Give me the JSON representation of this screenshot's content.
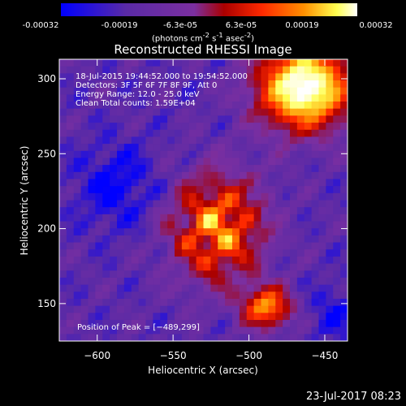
{
  "colorbar": {
    "ticks": [
      "-0.00032",
      "-0.00019",
      "-6.3e-05",
      "6.3e-05",
      "0.00019",
      "0.00032"
    ],
    "units_main": "(photons cm",
    "units_exp1": "-2",
    "units_mid": " s",
    "units_exp2": "-1",
    "units_end": " asec",
    "units_exp3": "-2",
    "units_close": ")"
  },
  "chart_data": {
    "type": "heatmap",
    "title": "Reconstructed RHESSI Image",
    "xlabel": "Heliocentric X (arcsec)",
    "ylabel": "Heliocentric Y (arcsec)",
    "xlim": [
      -625,
      -435
    ],
    "ylim": [
      125,
      313
    ],
    "xticks": [
      -600,
      -550,
      -500,
      -450
    ],
    "yticks": [
      150,
      200,
      250,
      300
    ],
    "xtick_labels": [
      "−600",
      "−550",
      "−500",
      "−450"
    ],
    "ytick_labels": [
      "150",
      "200",
      "250",
      "300"
    ],
    "colormap": [
      "#0000ff",
      "#5a2aa6",
      "#7b2fa0",
      "#aa0000",
      "#ff2a00",
      "#ff9000",
      "#ffff50",
      "#ffffff"
    ],
    "zrange": [
      -0.00032,
      0.00032
    ],
    "annotations": [
      "18-Jul-2015 19:44:52.000 to 19:54:52.000",
      "Detectors: 3F 5F 6F 7F 8F 9F, Att 0",
      "Energy Range: 12.0 - 25.0 keV",
      "Clean     Total counts: 1.59E+04"
    ],
    "peak_label": "Position of Peak = [−489,299]",
    "peak": [
      -489,
      299
    ]
  },
  "footer": {
    "date": "23-Jul-2017 08:23"
  }
}
